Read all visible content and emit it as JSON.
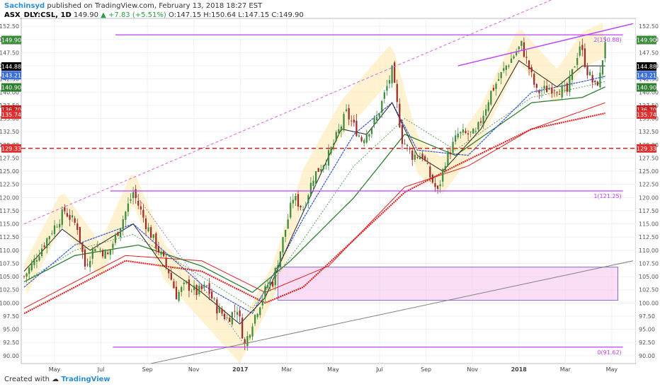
{
  "header": {
    "author": "Sachinsyd",
    "published": "published on TradingView.com, February 13, 2018 18:27 EST",
    "ticker": "ASX_DLY:CSL, 1D",
    "last": "149.90",
    "change": "▲ +7.83 (+5.51%)",
    "ohlc": "O:147.15 H:150.64 L:147.15 C:149.90"
  },
  "footer": {
    "created_with": "Created with",
    "brand": "TradingView"
  },
  "colors": {
    "up": "#3c8a3c",
    "down": "#9e2a2a",
    "grid": "#eef0f4",
    "fib": "#c040ff",
    "fan": "#e060e0",
    "zone": "#f7c8f0",
    "ma_red": "#e02020",
    "ma_blue": "#2f52d8",
    "ma_green": "#2f7d2f",
    "ma_black": "#222222",
    "highlight": "#fdeec0"
  },
  "chart_data": {
    "type": "candlestick",
    "title": "",
    "ylim": [
      88.5,
      154.0
    ],
    "y_ticks": [
      "152.50",
      "150.00",
      "147.50",
      "145.00",
      "142.50",
      "140.00",
      "137.50",
      "135.00",
      "132.50",
      "130.00",
      "127.50",
      "125.00",
      "122.50",
      "120.00",
      "117.50",
      "115.00",
      "112.50",
      "110.00",
      "107.50",
      "105.00",
      "102.50",
      "100.00",
      "97.50",
      "95.00",
      "92.50",
      "90.00"
    ],
    "x_ticks": [
      "May",
      "Jul",
      "Sep",
      "Nov",
      "2017",
      "Mar",
      "May",
      "Jul",
      "Sep",
      "Nov",
      "2018",
      "Mar",
      "May"
    ],
    "x_ticks_bold": [
      "2017",
      "2018"
    ],
    "price_path": [
      [
        0,
        105
      ],
      [
        4,
        108
      ],
      [
        10,
        113
      ],
      [
        16,
        117.5
      ],
      [
        21,
        114.5
      ],
      [
        24,
        107
      ],
      [
        28,
        111
      ],
      [
        33,
        109
      ],
      [
        39,
        116
      ],
      [
        43,
        121
      ],
      [
        48,
        115
      ],
      [
        52,
        111
      ],
      [
        57,
        106
      ],
      [
        60,
        101.5
      ],
      [
        64,
        103.5
      ],
      [
        68,
        102
      ],
      [
        72,
        103
      ],
      [
        76,
        99
      ],
      [
        80,
        97
      ],
      [
        84,
        99
      ],
      [
        87,
        92
      ],
      [
        90,
        96.5
      ],
      [
        93,
        100
      ],
      [
        96,
        103.5
      ],
      [
        98,
        104
      ],
      [
        101,
        110
      ],
      [
        106,
        120
      ],
      [
        110,
        118
      ],
      [
        114,
        124
      ],
      [
        120,
        128
      ],
      [
        127,
        136
      ],
      [
        133,
        131
      ],
      [
        139,
        135
      ],
      [
        145,
        144
      ],
      [
        149,
        131
      ],
      [
        153,
        128
      ],
      [
        157,
        128
      ],
      [
        160,
        124
      ],
      [
        163,
        121
      ],
      [
        166,
        127
      ],
      [
        171,
        132
      ],
      [
        178,
        132
      ],
      [
        184,
        140
      ],
      [
        190,
        145
      ],
      [
        196,
        149
      ],
      [
        202,
        140
      ],
      [
        209,
        141
      ],
      [
        214,
        140
      ],
      [
        219,
        149
      ],
      [
        222,
        144
      ],
      [
        225,
        141
      ],
      [
        227,
        143
      ],
      [
        229,
        150
      ]
    ],
    "drops": [
      [
        162,
        121
      ],
      [
        163,
        120
      ]
    ],
    "ma_red_thick": [
      [
        0,
        98
      ],
      [
        40,
        108
      ],
      [
        70,
        106
      ],
      [
        95,
        100
      ],
      [
        110,
        103
      ],
      [
        150,
        121
      ],
      [
        170,
        126
      ],
      [
        200,
        133
      ],
      [
        229,
        136
      ]
    ],
    "ma_red_thin": [
      [
        0,
        99
      ],
      [
        40,
        109
      ],
      [
        70,
        108
      ],
      [
        95,
        102
      ],
      [
        120,
        107
      ],
      [
        150,
        122
      ],
      [
        175,
        126
      ],
      [
        200,
        133
      ],
      [
        229,
        138
      ]
    ],
    "ma_blue": [
      [
        0,
        103
      ],
      [
        20,
        111
      ],
      [
        43,
        115
      ],
      [
        70,
        103.5
      ],
      [
        90,
        98
      ],
      [
        110,
        116
      ],
      [
        130,
        132
      ],
      [
        145,
        138
      ],
      [
        155,
        129
      ],
      [
        175,
        128
      ],
      [
        200,
        140
      ],
      [
        220,
        142
      ],
      [
        229,
        143
      ]
    ],
    "ma_green_dot": [
      [
        0,
        104
      ],
      [
        20,
        110
      ],
      [
        43,
        113
      ],
      [
        70,
        105
      ],
      [
        90,
        99
      ],
      [
        110,
        112
      ],
      [
        130,
        126
      ],
      [
        150,
        135
      ],
      [
        170,
        129
      ],
      [
        200,
        139
      ],
      [
        220,
        141
      ],
      [
        229,
        142
      ]
    ],
    "ma_green": [
      [
        0,
        104
      ],
      [
        20,
        109
      ],
      [
        45,
        111
      ],
      [
        70,
        107
      ],
      [
        90,
        102
      ],
      [
        105,
        108
      ],
      [
        130,
        120
      ],
      [
        150,
        132
      ],
      [
        170,
        128
      ],
      [
        200,
        138
      ],
      [
        220,
        139
      ],
      [
        229,
        141
      ]
    ],
    "ma_black": [
      [
        0,
        106
      ],
      [
        15,
        114
      ],
      [
        26,
        110
      ],
      [
        43,
        115
      ],
      [
        55,
        107
      ],
      [
        70,
        102
      ],
      [
        85,
        96
      ],
      [
        95,
        101
      ],
      [
        105,
        112
      ],
      [
        125,
        133
      ],
      [
        135,
        132
      ],
      [
        145,
        138
      ],
      [
        155,
        128
      ],
      [
        165,
        125
      ],
      [
        180,
        133
      ],
      [
        195,
        146
      ],
      [
        210,
        141
      ],
      [
        220,
        145
      ],
      [
        229,
        145
      ]
    ],
    "highlight_path": [
      [
        0,
        104
      ],
      [
        15,
        118
      ],
      [
        30,
        108
      ],
      [
        43,
        122
      ],
      [
        55,
        108
      ],
      [
        70,
        100
      ],
      [
        85,
        92
      ],
      [
        98,
        104
      ],
      [
        110,
        122
      ],
      [
        125,
        135
      ],
      [
        145,
        146
      ],
      [
        155,
        128
      ],
      [
        165,
        124
      ],
      [
        180,
        134
      ],
      [
        195,
        149
      ],
      [
        210,
        141
      ],
      [
        220,
        148
      ],
      [
        229,
        150
      ]
    ],
    "fib_levels": [
      {
        "label": "2(150.88)",
        "value": 150.88,
        "start": 36
      },
      {
        "label": "1(121.25)",
        "value": 121.25,
        "start": 34
      },
      {
        "label": "0(91.62)",
        "value": 91.62,
        "start": 35
      }
    ],
    "trend_lines": [
      {
        "name": "channel-top",
        "from": [
          171,
          145
        ],
        "to": [
          240,
          153
        ]
      },
      {
        "name": "lower-support",
        "from": [
          50,
          88.5
        ],
        "to": [
          240,
          108
        ]
      }
    ],
    "fan_line": {
      "from": [
        0,
        115
      ],
      "to": [
        220,
        160
      ]
    },
    "zone": {
      "from": [
        100,
        100.5
      ],
      "to": [
        234,
        106.8
      ]
    },
    "horizontal_dashed": {
      "value": 129.33
    },
    "price_labels": [
      {
        "text": "149.90",
        "value": 149.9,
        "bg": "#3c8a3c",
        "fg": "#ffffff"
      },
      {
        "text": "144.88",
        "value": 144.88,
        "bg": "#000000",
        "fg": "#ffffff"
      },
      {
        "text": "143.21",
        "value": 143.21,
        "bg": "#3b6fd8",
        "fg": "#ffffff"
      },
      {
        "text": "140.90",
        "value": 140.9,
        "bg": "#2f7d2f",
        "fg": "#ffffff"
      },
      {
        "text": "136.70",
        "value": 136.7,
        "bg": "#c82020",
        "fg": "#ffffff"
      },
      {
        "text": "135.74",
        "value": 135.74,
        "bg": "#e03030",
        "fg": "#ffffff"
      },
      {
        "text": "129.33",
        "value": 129.33,
        "bg": "#e03030",
        "fg": "#ffffff"
      }
    ]
  }
}
